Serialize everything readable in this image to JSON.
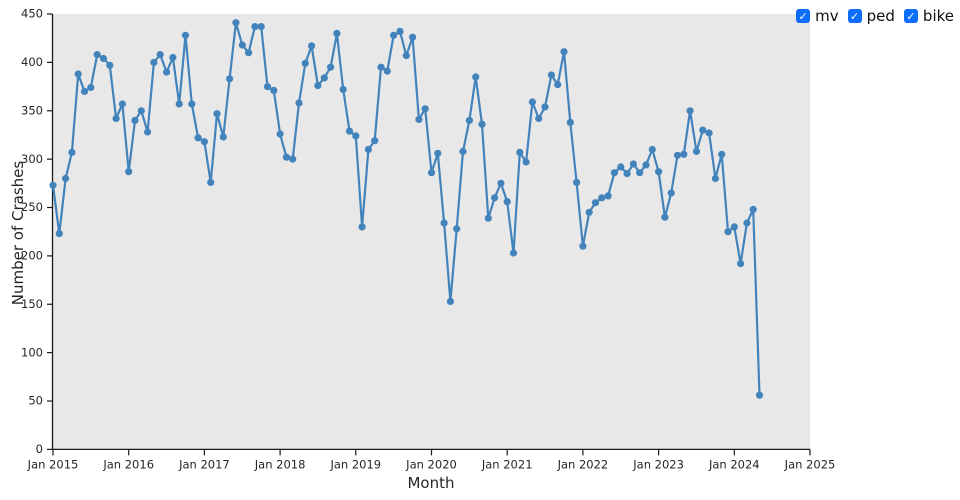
{
  "legend": {
    "accent_color": "#0d6efd",
    "check_glyph": "✓",
    "items": [
      {
        "label": "mv",
        "checked": true
      },
      {
        "label": "ped",
        "checked": true
      },
      {
        "label": "bike",
        "checked": true
      }
    ]
  },
  "chart_data": {
    "type": "line",
    "title": "",
    "xlabel": "Month",
    "ylabel": "Number of Crashes",
    "plot_bg": "#e8e8e8",
    "grid": false,
    "legend_position": "top-right",
    "line_color": "#4383bc",
    "axis_color": "#1a1a1a",
    "tick_label_color": "#262626",
    "ylim": [
      0,
      450
    ],
    "y_ticks": [
      0,
      50,
      100,
      150,
      200,
      250,
      300,
      350,
      400,
      450
    ],
    "x_tick_labels": [
      "Jan 2015",
      "Jan 2016",
      "Jan 2017",
      "Jan 2018",
      "Jan 2019",
      "Jan 2020",
      "Jan 2021",
      "Jan 2022",
      "Jan 2023",
      "Jan 2024",
      "Jan 2025"
    ],
    "x_axis_span_months": 120,
    "series": [
      {
        "name": "crashes",
        "x_start": "2015-01",
        "x_freq": "monthly",
        "values": [
          273,
          223,
          280,
          307,
          388,
          370,
          374,
          408,
          404,
          397,
          342,
          357,
          287,
          340,
          350,
          328,
          400,
          408,
          390,
          405,
          357,
          428,
          357,
          322,
          318,
          276,
          347,
          323,
          383,
          441,
          418,
          410,
          437,
          437,
          375,
          371,
          326,
          302,
          300,
          358,
          399,
          417,
          376,
          384,
          395,
          430,
          372,
          329,
          324,
          230,
          310,
          319,
          395,
          391,
          428,
          432,
          407,
          426,
          341,
          352,
          286,
          306,
          234,
          153,
          228,
          308,
          340,
          385,
          336,
          239,
          260,
          275,
          256,
          203,
          307,
          297,
          359,
          342,
          354,
          387,
          377,
          411,
          338,
          276,
          210,
          245,
          255,
          260,
          262,
          286,
          292,
          285,
          295,
          286,
          294,
          310,
          287,
          240,
          265,
          304,
          305,
          350,
          308,
          330,
          327,
          280,
          305,
          225,
          230,
          192,
          234,
          248,
          56
        ]
      }
    ]
  }
}
